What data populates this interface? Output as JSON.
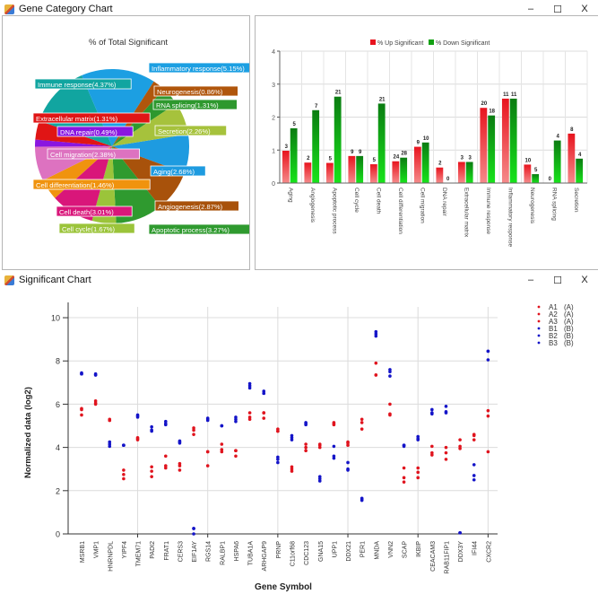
{
  "window_top": {
    "title": "Gene Category Chart",
    "icon": "app-icon",
    "controls": {
      "minimize": "–",
      "maximize": "☐",
      "close": "X"
    }
  },
  "window_bottom": {
    "title": "Significant Chart",
    "icon": "app-icon",
    "controls": {
      "minimize": "–",
      "maximize": "☐",
      "close": "X"
    }
  },
  "chart_data": [
    {
      "type": "pie",
      "title": "% of Total Significant",
      "slices": [
        {
          "label": "Aging",
          "value": 2.68,
          "text": "Aging(2.68%)",
          "color": "#1e9be0"
        },
        {
          "label": "Angiogenesis",
          "value": 2.87,
          "text": "Angiogenesis(2.87%)",
          "color": "#a8520b"
        },
        {
          "label": "Apoptotic process",
          "value": 3.27,
          "text": "Apoptotic process(3.27%)",
          "color": "#2f9a2f"
        },
        {
          "label": "Cell cycle",
          "value": 1.67,
          "text": "Cell cycle(1.67%)",
          "color": "#9bc43a"
        },
        {
          "label": "Cell death",
          "value": 3.01,
          "text": "Cell death(3.01%)",
          "color": "#d9167a"
        },
        {
          "label": "Cell differentiation",
          "value": 1.46,
          "text": "Cell differentiation(1.46%)",
          "color": "#f0930e"
        },
        {
          "label": "Cell migration",
          "value": 2.38,
          "text": "Cell migration(2.38%)",
          "color": "#dd72c0"
        },
        {
          "label": "DNA repair",
          "value": 0.49,
          "text": "DNA repair(0.49%)",
          "color": "#8a16e0"
        },
        {
          "label": "Extracellular matrix",
          "value": 1.31,
          "text": "Extracellular matrix(1.31%)",
          "color": "#e01515"
        },
        {
          "label": "Immune response",
          "value": 4.37,
          "text": "Immune response(4.37%)",
          "color": "#11a5a0"
        },
        {
          "label": "Inflammatory response",
          "value": 5.15,
          "text": "Inflammatory response(5.15%)",
          "color": "#1c9fe2"
        },
        {
          "label": "Neurogenesis",
          "value": 0.86,
          "text": "Neurogenesis(0.86%)",
          "color": "#b0560c"
        },
        {
          "label": "RNA splicing",
          "value": 1.31,
          "text": "RNA splicing(1.31%)",
          "color": "#2e982e"
        },
        {
          "label": "Secretion",
          "value": 2.26,
          "text": "Secretion(2.26%)",
          "color": "#a6c23c"
        }
      ]
    },
    {
      "type": "bar",
      "title": "",
      "legend": [
        {
          "name": "% Up Significant",
          "color": "#e8141e"
        },
        {
          "name": "% Down Significant",
          "color": "#12a012"
        }
      ],
      "legend_position": "top-center",
      "categories": [
        "Aging",
        "Angiogenesis",
        "Apoptotic process",
        "Cell cycle",
        "Cell death",
        "Cell differentiation",
        "Cell migration",
        "DNA repair",
        "Extracellular matrix",
        "Immune response",
        "Inflammatory response",
        "Neurogenesis",
        "RNA splicing",
        "Secretion"
      ],
      "series": [
        {
          "name": "% Up Significant",
          "values": [
            0.98,
            0.62,
            0.61,
            0.82,
            0.57,
            0.66,
            1.1,
            0.47,
            0.64,
            2.28,
            2.56,
            0.56,
            0.0,
            1.5
          ],
          "labels": [
            "3",
            "2",
            "5",
            "9",
            "5",
            "24",
            "9",
            "2",
            "3",
            "20",
            "11",
            "10",
            "0",
            "8"
          ]
        },
        {
          "name": "% Down Significant",
          "values": [
            1.66,
            2.21,
            2.62,
            0.82,
            2.41,
            0.77,
            1.23,
            0.0,
            0.64,
            2.05,
            2.56,
            0.27,
            1.29,
            0.74
          ],
          "labels": [
            "5",
            "7",
            "21",
            "9",
            "21",
            "28",
            "10",
            "0",
            "3",
            "18",
            "11",
            "5",
            "4",
            "4"
          ]
        }
      ],
      "ylim": [
        0,
        4
      ],
      "yticks": [
        "0",
        "1",
        "2",
        "3",
        "4"
      ],
      "grid": true
    },
    {
      "type": "scatter",
      "title": "",
      "xlabel": "Gene Symbol",
      "ylabel": "Normalized data (log2)",
      "ylim": [
        0,
        10.5
      ],
      "yticks": [
        "0",
        "2",
        "4",
        "6",
        "8",
        "10"
      ],
      "grid": true,
      "legend_position": "top-right",
      "legend": [
        {
          "name": "A1",
          "group": "(A)",
          "color": "#e0141e"
        },
        {
          "name": "A2",
          "group": "(A)",
          "color": "#e0141e"
        },
        {
          "name": "A3",
          "group": "(A)",
          "color": "#e0141e"
        },
        {
          "name": "B1",
          "group": "(B)",
          "color": "#1414c8"
        },
        {
          "name": "B2",
          "group": "(B)",
          "color": "#1414c8"
        },
        {
          "name": "B3",
          "group": "(B)",
          "color": "#1414c8"
        }
      ],
      "genes": [
        "MSRB1",
        "VMP1",
        "HNRNPDL",
        "YIPF4",
        "TMEM71",
        "PADI2",
        "FRAT1",
        "CERS3",
        "EIF1AY",
        "RGS14",
        "RALBP1",
        "HSPA6",
        "TUBA1A",
        "ARHGAP9",
        "PRNP",
        "C11orf68",
        "CDC123",
        "GNA15",
        "UPP1",
        "DDX21",
        "PER1",
        "MNDA",
        "VNN2",
        "SCAP",
        "IKBIP",
        "CEACAM3",
        "RAB11FIP1",
        "DDX3Y",
        "IFI44",
        "CXCR2"
      ],
      "A": [
        [
          5.8,
          5.75,
          5.5
        ],
        [
          6.15,
          6.05,
          6.0
        ],
        [
          5.3,
          5.25,
          5.25
        ],
        [
          2.95,
          2.75,
          2.55
        ],
        [
          4.45,
          4.35,
          4.4
        ],
        [
          3.1,
          2.9,
          2.65
        ],
        [
          3.6,
          3.15,
          3.05
        ],
        [
          3.25,
          3.15,
          2.95
        ],
        [
          4.9,
          4.8,
          4.6
        ],
        [
          3.8,
          3.8,
          3.15
        ],
        [
          4.15,
          3.9,
          3.8
        ],
        [
          3.85,
          3.85,
          3.6
        ],
        [
          5.6,
          5.4,
          5.3
        ],
        [
          5.6,
          5.6,
          5.35
        ],
        [
          4.85,
          4.75,
          4.75
        ],
        [
          3.1,
          3.0,
          2.9
        ],
        [
          4.15,
          4.0,
          3.85
        ],
        [
          4.15,
          4.1,
          4.0
        ],
        [
          5.15,
          5.05,
          5.1
        ],
        [
          4.2,
          4.25,
          4.1
        ],
        [
          5.3,
          5.15,
          4.85
        ],
        [
          7.9,
          7.35,
          7.35
        ],
        [
          6.0,
          5.55,
          5.5
        ],
        [
          3.05,
          2.6,
          2.4
        ],
        [
          3.05,
          2.85,
          2.6
        ],
        [
          4.05,
          3.75,
          3.65
        ],
        [
          4.0,
          3.75,
          3.45
        ],
        [
          4.35,
          4.05,
          3.95
        ],
        [
          4.6,
          4.55,
          4.35
        ],
        [
          5.7,
          5.45,
          3.8
        ]
      ],
      "B": [
        [
          7.4,
          7.45,
          7.4
        ],
        [
          7.35,
          7.35,
          7.4
        ],
        [
          4.25,
          4.15,
          4.05
        ],
        [
          4.1,
          4.1,
          4.1
        ],
        [
          5.5,
          5.45,
          5.4
        ],
        [
          4.95,
          4.8,
          4.75
        ],
        [
          5.2,
          5.1,
          5.05
        ],
        [
          4.3,
          4.25,
          4.2
        ],
        [
          0.25,
          0.25,
          0.0
        ],
        [
          5.35,
          5.3,
          5.25
        ],
        [
          5.0,
          5.0,
          5.0
        ],
        [
          5.4,
          5.3,
          5.2
        ],
        [
          6.95,
          6.85,
          6.75
        ],
        [
          6.6,
          6.5,
          6.5
        ],
        [
          3.55,
          3.45,
          3.3
        ],
        [
          4.55,
          4.45,
          4.35
        ],
        [
          5.15,
          5.1,
          5.05
        ],
        [
          2.65,
          2.55,
          2.45
        ],
        [
          4.05,
          3.6,
          3.5
        ],
        [
          3.3,
          3.0,
          2.95
        ],
        [
          1.65,
          1.6,
          1.55
        ],
        [
          9.35,
          9.25,
          9.15
        ],
        [
          7.6,
          7.5,
          7.3
        ],
        [
          4.05,
          4.1,
          4.1
        ],
        [
          4.5,
          4.4,
          4.35
        ],
        [
          5.75,
          5.6,
          5.55
        ],
        [
          5.9,
          5.65,
          5.6
        ],
        [
          0.05,
          0.05,
          0.05
        ],
        [
          3.2,
          2.7,
          2.5
        ],
        [
          8.45,
          8.45,
          8.05
        ]
      ]
    }
  ]
}
